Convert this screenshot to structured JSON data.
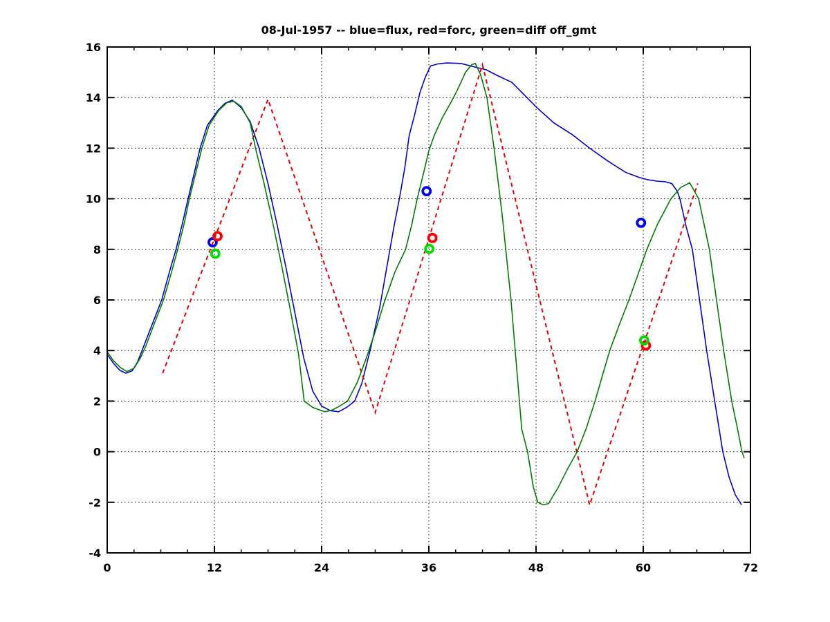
{
  "chart_data": {
    "type": "line",
    "title": "08-Jul-1957 -- blue=flux, red=forc, green=diff off_gmt",
    "xlabel": "",
    "ylabel": "",
    "xlim": [
      0,
      72
    ],
    "ylim": [
      -4,
      16
    ],
    "xticks": [
      0,
      12,
      24,
      36,
      48,
      60,
      72
    ],
    "yticks": [
      -4,
      -2,
      0,
      2,
      4,
      6,
      8,
      10,
      12,
      14,
      16
    ],
    "x_minor_step": 3,
    "grid": "dotted",
    "grid_color": "#000000",
    "background": "#FFFFFF",
    "legend_in_title": {
      "blue": "flux",
      "red": "forc",
      "green": "diff off_gmt"
    },
    "series": [
      {
        "name": "flux",
        "color": "#0000CC",
        "style": "solid",
        "points": [
          [
            0,
            3.85
          ],
          [
            0.7,
            3.5
          ],
          [
            1.4,
            3.22
          ],
          [
            2.1,
            3.1
          ],
          [
            2.8,
            3.2
          ],
          [
            3.4,
            3.55
          ],
          [
            3.9,
            4
          ],
          [
            5,
            5
          ],
          [
            6.1,
            6
          ],
          [
            7,
            7.15
          ],
          [
            7.7,
            8
          ],
          [
            8.4,
            9
          ],
          [
            9.05,
            10
          ],
          [
            9.8,
            11.1
          ],
          [
            10.4,
            12
          ],
          [
            11.2,
            12.9
          ],
          [
            12.4,
            13.5
          ],
          [
            13.2,
            13.78
          ],
          [
            14,
            13.9
          ],
          [
            15,
            13.6
          ],
          [
            16,
            13.05
          ],
          [
            17,
            12
          ],
          [
            18,
            10.6
          ],
          [
            19,
            9
          ],
          [
            20,
            7.3
          ],
          [
            21,
            5.5
          ],
          [
            22,
            3.7
          ],
          [
            23,
            2.4
          ],
          [
            24,
            1.8
          ],
          [
            25,
            1.62
          ],
          [
            25.9,
            1.58
          ],
          [
            26.8,
            1.75
          ],
          [
            27.7,
            2
          ],
          [
            28.5,
            2.7
          ],
          [
            29.5,
            4.1
          ],
          [
            30.5,
            5.7
          ],
          [
            31.3,
            7.3
          ],
          [
            32.1,
            8.9
          ],
          [
            32.7,
            10
          ],
          [
            33.3,
            11.2
          ],
          [
            33.8,
            12.5
          ],
          [
            34.4,
            13.3
          ],
          [
            35,
            14.2
          ],
          [
            35.6,
            14.8
          ],
          [
            36.2,
            15.25
          ],
          [
            37,
            15.33
          ],
          [
            38,
            15.37
          ],
          [
            39.6,
            15.35
          ],
          [
            41,
            15.22
          ],
          [
            42.4,
            15.1
          ],
          [
            43.8,
            14.85
          ],
          [
            45.3,
            14.6
          ],
          [
            46.7,
            14.1
          ],
          [
            48.1,
            13.6
          ],
          [
            50,
            13
          ],
          [
            52,
            12.55
          ],
          [
            54,
            12
          ],
          [
            56,
            11.5
          ],
          [
            58,
            11.05
          ],
          [
            59.5,
            10.85
          ],
          [
            60.5,
            10.75
          ],
          [
            61.5,
            10.7
          ],
          [
            62.5,
            10.67
          ],
          [
            63.2,
            10.6
          ],
          [
            63.8,
            10.3
          ],
          [
            64.1,
            10
          ],
          [
            64.8,
            8.9
          ],
          [
            65.5,
            8
          ],
          [
            66.3,
            6
          ],
          [
            67.1,
            4
          ],
          [
            68,
            2
          ],
          [
            68.9,
            0
          ],
          [
            69.6,
            -1
          ],
          [
            70.3,
            -1.7
          ],
          [
            71,
            -2.1
          ]
        ]
      },
      {
        "name": "forc",
        "color": "#E80000",
        "style": "dashed",
        "points": [
          [
            6.2,
            3.1
          ],
          [
            18,
            13.93
          ],
          [
            30,
            1.55
          ],
          [
            42,
            15.3
          ],
          [
            54,
            -2.1
          ],
          [
            66.1,
            10.6
          ]
        ]
      },
      {
        "name": "diff",
        "color": "#007B00",
        "style": "solid",
        "points": [
          [
            0,
            3.95
          ],
          [
            0.7,
            3.6
          ],
          [
            1.5,
            3.32
          ],
          [
            2.2,
            3.17
          ],
          [
            3,
            3.3
          ],
          [
            3.7,
            3.7
          ],
          [
            4.3,
            4.15
          ],
          [
            5.2,
            5
          ],
          [
            6.3,
            6
          ],
          [
            7.2,
            7.1
          ],
          [
            7.9,
            8
          ],
          [
            8.6,
            9
          ],
          [
            9.2,
            10
          ],
          [
            10,
            11.15
          ],
          [
            10.6,
            12
          ],
          [
            11.4,
            12.9
          ],
          [
            12.5,
            13.5
          ],
          [
            13.4,
            13.8
          ],
          [
            14.2,
            13.85
          ],
          [
            15,
            13.65
          ],
          [
            16,
            13
          ],
          [
            16.6,
            12
          ],
          [
            17.5,
            10.7
          ],
          [
            18.5,
            9.1
          ],
          [
            19.5,
            7.4
          ],
          [
            20.5,
            5.6
          ],
          [
            21.4,
            3.9
          ],
          [
            22.05,
            2
          ],
          [
            23,
            1.75
          ],
          [
            24,
            1.62
          ],
          [
            24.4,
            1.58
          ],
          [
            25.2,
            1.65
          ],
          [
            26,
            1.8
          ],
          [
            26.9,
            2
          ],
          [
            28,
            2.75
          ],
          [
            29,
            3.7
          ],
          [
            30,
            4.75
          ],
          [
            31,
            5.9
          ],
          [
            32.2,
            7.1
          ],
          [
            33.4,
            8
          ],
          [
            34.1,
            9
          ],
          [
            34.7,
            10
          ],
          [
            35.4,
            11
          ],
          [
            36,
            11.9
          ],
          [
            36.6,
            12.5
          ],
          [
            37.5,
            13.2
          ],
          [
            38.3,
            13.7
          ],
          [
            39.2,
            14.3
          ],
          [
            40.1,
            15
          ],
          [
            40.8,
            15.3
          ],
          [
            41.2,
            15.35
          ],
          [
            41.8,
            14.9
          ],
          [
            42.5,
            14
          ],
          [
            43.3,
            12
          ],
          [
            44.2,
            9.4
          ],
          [
            45.2,
            6
          ],
          [
            46.4,
            0.9
          ],
          [
            47.05,
            0
          ],
          [
            47.7,
            -1.4
          ],
          [
            48.2,
            -2
          ],
          [
            48.8,
            -2.1
          ],
          [
            49.4,
            -2.05
          ],
          [
            50.5,
            -1.4
          ],
          [
            51.5,
            -0.7
          ],
          [
            52.6,
            0
          ],
          [
            53.6,
            0.9
          ],
          [
            54.6,
            2
          ],
          [
            55.5,
            3.1
          ],
          [
            56.25,
            4
          ],
          [
            57.3,
            5
          ],
          [
            58.4,
            6
          ],
          [
            59.4,
            7
          ],
          [
            60.4,
            8
          ],
          [
            61.6,
            9
          ],
          [
            63.1,
            10
          ],
          [
            64.2,
            10.45
          ],
          [
            65.2,
            10.63
          ],
          [
            66.2,
            10
          ],
          [
            67.4,
            8
          ],
          [
            68.2,
            6
          ],
          [
            69,
            4
          ],
          [
            69.9,
            2
          ],
          [
            70.5,
            1
          ],
          [
            71.05,
            0
          ],
          [
            71.3,
            -0.25
          ]
        ]
      }
    ],
    "markers": [
      {
        "name": "flux-obs",
        "color": "#0000EE",
        "shape": "circle",
        "points": [
          [
            11.8,
            8.28
          ],
          [
            35.75,
            10.3
          ],
          [
            59.75,
            9.05
          ]
        ]
      },
      {
        "name": "forc-obs",
        "color": "#FF0000",
        "shape": "circle",
        "points": [
          [
            12.35,
            8.52
          ],
          [
            36.4,
            8.45
          ],
          [
            60.3,
            4.2
          ]
        ]
      },
      {
        "name": "diff-obs",
        "color": "#00DC00",
        "shape": "circle",
        "points": [
          [
            12.1,
            7.83
          ],
          [
            36.05,
            8.02
          ],
          [
            60.1,
            4.4
          ]
        ]
      }
    ]
  }
}
